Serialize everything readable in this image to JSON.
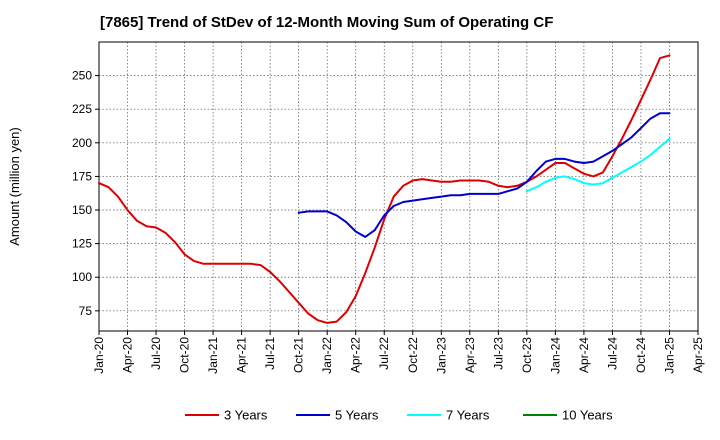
{
  "chart_data": {
    "type": "line",
    "title": "[7865]  Trend of StDev of 12-Month Moving Sum of Operating CF",
    "xlabel": "",
    "ylabel": "Amount (million yen)",
    "ylim": [
      60,
      275
    ],
    "yticks": [
      75,
      100,
      125,
      150,
      175,
      200,
      225,
      250
    ],
    "grid": true,
    "legend_position": "bottom",
    "x_start": "Jan-20",
    "xticks": [
      "Jan-20",
      "Apr-20",
      "Jul-20",
      "Oct-20",
      "Jan-21",
      "Apr-21",
      "Jul-21",
      "Oct-21",
      "Jan-22",
      "Apr-22",
      "Jul-22",
      "Oct-22",
      "Jan-23",
      "Apr-23",
      "Jul-23",
      "Oct-23",
      "Jan-24",
      "Apr-24",
      "Jul-24",
      "Oct-24",
      "Jan-25",
      "Apr-25"
    ],
    "series": [
      {
        "name": "3 Years",
        "color": "#dd0000",
        "x": [
          "Jan-20",
          "Feb-20",
          "Mar-20",
          "Apr-20",
          "May-20",
          "Jun-20",
          "Jul-20",
          "Aug-20",
          "Sep-20",
          "Oct-20",
          "Nov-20",
          "Dec-20",
          "Jan-21",
          "Feb-21",
          "Mar-21",
          "Apr-21",
          "May-21",
          "Jun-21",
          "Jul-21",
          "Aug-21",
          "Sep-21",
          "Oct-21",
          "Nov-21",
          "Dec-21",
          "Jan-22",
          "Feb-22",
          "Mar-22",
          "Apr-22",
          "May-22",
          "Jun-22",
          "Jul-22",
          "Aug-22",
          "Sep-22",
          "Oct-22",
          "Nov-22",
          "Dec-22",
          "Jan-23",
          "Feb-23",
          "Mar-23",
          "Apr-23",
          "May-23",
          "Jun-23",
          "Jul-23",
          "Aug-23",
          "Sep-23",
          "Oct-23",
          "Nov-23",
          "Dec-23",
          "Jan-24",
          "Feb-24",
          "Mar-24",
          "Apr-24",
          "May-24",
          "Jun-24",
          "Jul-24",
          "Aug-24",
          "Sep-24",
          "Oct-24",
          "Nov-24",
          "Dec-24",
          "Jan-25"
        ],
        "values": [
          170,
          167,
          160,
          150,
          142,
          138,
          137,
          133,
          126,
          117,
          112,
          110,
          110,
          110,
          110,
          110,
          110,
          109,
          104,
          97,
          89,
          81,
          73,
          68,
          66,
          67,
          74,
          86,
          103,
          122,
          143,
          160,
          168,
          172,
          173,
          172,
          171,
          171,
          172,
          172,
          172,
          171,
          168,
          167,
          168,
          171,
          175,
          180,
          185,
          185,
          181,
          177,
          175,
          178,
          190,
          203,
          217,
          232,
          247,
          263,
          265
        ]
      },
      {
        "name": "5 Years",
        "color": "#0000cc",
        "x": [
          "Oct-21",
          "Nov-21",
          "Dec-21",
          "Jan-22",
          "Feb-22",
          "Mar-22",
          "Apr-22",
          "May-22",
          "Jun-22",
          "Jul-22",
          "Aug-22",
          "Sep-22",
          "Oct-22",
          "Nov-22",
          "Dec-22",
          "Jan-23",
          "Feb-23",
          "Mar-23",
          "Apr-23",
          "May-23",
          "Jun-23",
          "Jul-23",
          "Aug-23",
          "Sep-23",
          "Oct-23",
          "Nov-23",
          "Dec-23",
          "Jan-24",
          "Feb-24",
          "Mar-24",
          "Apr-24",
          "May-24",
          "Jun-24",
          "Jul-24",
          "Aug-24",
          "Sep-24",
          "Oct-24",
          "Nov-24",
          "Dec-24",
          "Jan-25"
        ],
        "values": [
          148,
          149,
          149,
          149,
          146,
          141,
          134,
          130,
          135,
          146,
          153,
          156,
          157,
          158,
          159,
          160,
          161,
          161,
          162,
          162,
          162,
          162,
          164,
          166,
          171,
          179,
          186,
          188,
          188,
          186,
          185,
          186,
          190,
          194,
          199,
          204,
          211,
          218,
          222,
          222
        ]
      },
      {
        "name": "7 Years",
        "color": "#00ffff",
        "x": [
          "Oct-23",
          "Nov-23",
          "Dec-23",
          "Jan-24",
          "Feb-24",
          "Mar-24",
          "Apr-24",
          "May-24",
          "Jun-24",
          "Jul-24",
          "Aug-24",
          "Sep-24",
          "Oct-24",
          "Nov-24",
          "Dec-24",
          "Jan-25"
        ],
        "values": [
          164,
          167,
          171,
          174,
          175,
          173,
          170,
          169,
          170,
          174,
          178,
          182,
          186,
          191,
          197,
          203
        ]
      },
      {
        "name": "10 Years",
        "color": "#008000",
        "x": [],
        "values": []
      }
    ]
  }
}
